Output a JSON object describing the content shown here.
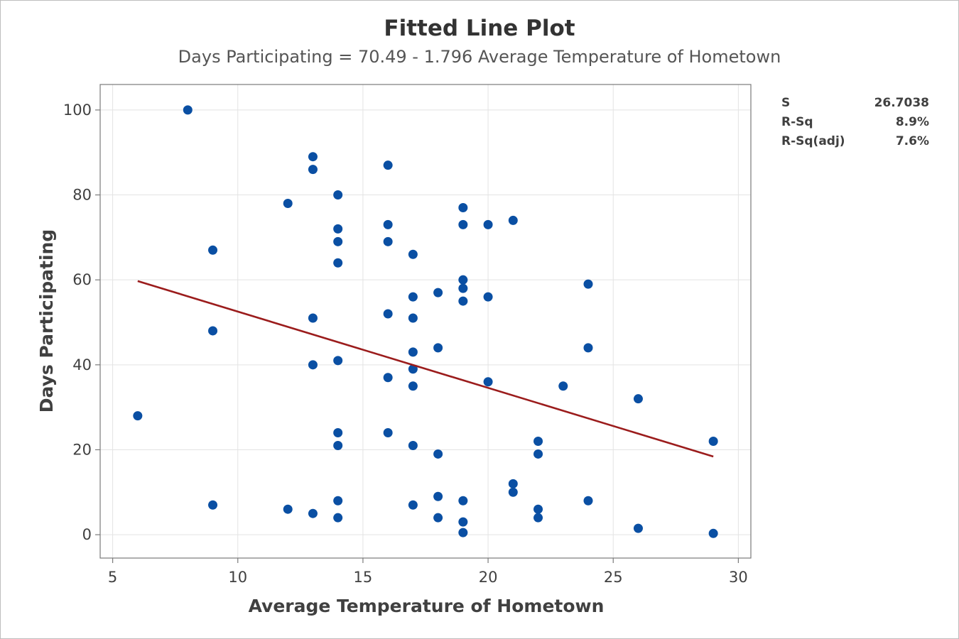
{
  "chart_data": {
    "type": "scatter",
    "title": "Fitted Line Plot",
    "subtitle": "Days Participating = 70.49 - 1.796 Average Temperature of Hometown",
    "xlabel": "Average Temperature of Hometown",
    "ylabel": "Days Participating",
    "xlim": [
      4.5,
      30.5
    ],
    "ylim": [
      -5.5,
      106
    ],
    "xticks": [
      5,
      10,
      15,
      20,
      25,
      30
    ],
    "yticks": [
      0,
      20,
      40,
      60,
      80,
      100
    ],
    "grid": true,
    "points": [
      {
        "x": 6,
        "y": 28
      },
      {
        "x": 8,
        "y": 100
      },
      {
        "x": 9,
        "y": 67
      },
      {
        "x": 9,
        "y": 48
      },
      {
        "x": 9,
        "y": 7
      },
      {
        "x": 12,
        "y": 78
      },
      {
        "x": 12,
        "y": 6
      },
      {
        "x": 13,
        "y": 89
      },
      {
        "x": 13,
        "y": 86
      },
      {
        "x": 13,
        "y": 51
      },
      {
        "x": 13,
        "y": 40
      },
      {
        "x": 13,
        "y": 5
      },
      {
        "x": 14,
        "y": 80
      },
      {
        "x": 14,
        "y": 72
      },
      {
        "x": 14,
        "y": 69
      },
      {
        "x": 14,
        "y": 64
      },
      {
        "x": 14,
        "y": 41
      },
      {
        "x": 14,
        "y": 24
      },
      {
        "x": 14,
        "y": 21
      },
      {
        "x": 14,
        "y": 8
      },
      {
        "x": 14,
        "y": 4
      },
      {
        "x": 16,
        "y": 87
      },
      {
        "x": 16,
        "y": 73
      },
      {
        "x": 16,
        "y": 69
      },
      {
        "x": 16,
        "y": 52
      },
      {
        "x": 16,
        "y": 37
      },
      {
        "x": 16,
        "y": 24
      },
      {
        "x": 17,
        "y": 66
      },
      {
        "x": 17,
        "y": 56
      },
      {
        "x": 17,
        "y": 51
      },
      {
        "x": 17,
        "y": 43
      },
      {
        "x": 17,
        "y": 39
      },
      {
        "x": 17,
        "y": 35
      },
      {
        "x": 17,
        "y": 21
      },
      {
        "x": 17,
        "y": 7
      },
      {
        "x": 18,
        "y": 57
      },
      {
        "x": 18,
        "y": 44
      },
      {
        "x": 18,
        "y": 19
      },
      {
        "x": 18,
        "y": 9
      },
      {
        "x": 18,
        "y": 4
      },
      {
        "x": 19,
        "y": 77
      },
      {
        "x": 19,
        "y": 73
      },
      {
        "x": 19,
        "y": 60
      },
      {
        "x": 19,
        "y": 58
      },
      {
        "x": 19,
        "y": 55
      },
      {
        "x": 19,
        "y": 8
      },
      {
        "x": 19,
        "y": 3
      },
      {
        "x": 19,
        "y": 0.5
      },
      {
        "x": 20,
        "y": 73
      },
      {
        "x": 20,
        "y": 56
      },
      {
        "x": 20,
        "y": 36
      },
      {
        "x": 21,
        "y": 74
      },
      {
        "x": 21,
        "y": 12
      },
      {
        "x": 21,
        "y": 10
      },
      {
        "x": 22,
        "y": 22
      },
      {
        "x": 22,
        "y": 19
      },
      {
        "x": 22,
        "y": 6
      },
      {
        "x": 22,
        "y": 4
      },
      {
        "x": 23,
        "y": 35
      },
      {
        "x": 24,
        "y": 59
      },
      {
        "x": 24,
        "y": 44
      },
      {
        "x": 24,
        "y": 8
      },
      {
        "x": 26,
        "y": 32
      },
      {
        "x": 26,
        "y": 1.5
      },
      {
        "x": 29,
        "y": 22
      },
      {
        "x": 29,
        "y": 0.3
      }
    ],
    "fit": {
      "intercept": 70.49,
      "slope": -1.796,
      "x_range": [
        6,
        29
      ]
    },
    "colors": {
      "points": "#0a4fa3",
      "fit_line": "#9b1c1c",
      "grid": "#e3e3e3",
      "axes": "#7a7a7a"
    }
  },
  "stats": [
    {
      "label": "S",
      "value": "26.7038"
    },
    {
      "label": "R-Sq",
      "value": "8.9%"
    },
    {
      "label": "R-Sq(adj)",
      "value": "7.6%"
    }
  ]
}
